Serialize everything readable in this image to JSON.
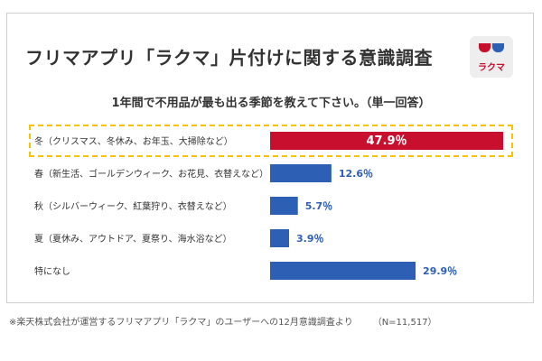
{
  "title": "フリマアプリ「ラクマ」片付けに関する意識調査",
  "logo_text": "ラクマ",
  "colors": {
    "highlight_bar": "#c8102e",
    "bar": "#2d5fb5",
    "highlight_border": "#f2c500"
  },
  "chart_data": {
    "type": "bar",
    "orientation": "horizontal",
    "title": "1年間で不用品が最も出る季節を教えて下さい。（単一回答）",
    "categories": [
      "冬（クリスマス、冬休み、お年玉、大掃除など）",
      "春（新生活、ゴールデンウィーク、お花見、衣替えなど）",
      "秋（シルバーウィーク、紅葉狩り、衣替えなど）",
      "夏（夏休み、アウトドア、夏祭り、海水浴など）",
      "特になし"
    ],
    "values": [
      47.9,
      12.6,
      5.7,
      3.9,
      29.9
    ],
    "value_labels": [
      "47.9％",
      "12.6％",
      "5.7％",
      "3.9％",
      "29.9％"
    ],
    "highlighted_index": 0,
    "xlim": [
      0,
      47.9
    ]
  },
  "footnote": "※楽天株式会社が運営するフリマアプリ「ラクマ」のユーザーへの12月意識調査より",
  "sample_size": "（N=11,517）"
}
